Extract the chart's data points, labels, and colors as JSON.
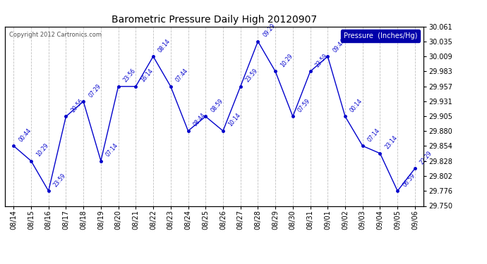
{
  "title": "Barometric Pressure Daily High 20120907",
  "copyright": "Copyright 2012 Cartronics.com",
  "legend_label": "Pressure  (Inches/Hg)",
  "line_color": "#0000CC",
  "background_color": "#ffffff",
  "grid_color": "#c0c0c0",
  "dates": [
    "08/14",
    "08/15",
    "08/16",
    "08/17",
    "08/18",
    "08/19",
    "08/20",
    "08/21",
    "08/22",
    "08/23",
    "08/24",
    "08/25",
    "08/26",
    "08/27",
    "08/28",
    "08/29",
    "08/30",
    "08/31",
    "09/01",
    "09/02",
    "09/03",
    "09/04",
    "09/05",
    "09/06"
  ],
  "values": [
    29.854,
    29.828,
    29.776,
    29.905,
    29.931,
    29.828,
    29.957,
    29.957,
    30.009,
    29.957,
    29.88,
    29.905,
    29.88,
    29.957,
    30.035,
    29.983,
    29.905,
    29.983,
    30.009,
    29.905,
    29.854,
    29.841,
    29.776,
    29.815
  ],
  "time_labels": [
    "00:44",
    "10:29",
    "23:59",
    "20:56",
    "07:29",
    "07:14",
    "23:56",
    "16:14",
    "08:14",
    "07:44",
    "08:44",
    "08:59",
    "10:14",
    "23:59",
    "09:29",
    "10:29",
    "07:59",
    "23:59",
    "09:44",
    "00:14",
    "07:14",
    "23:14",
    "06:59",
    "22:29"
  ],
  "ylim": [
    29.75,
    30.061
  ],
  "yticks": [
    29.75,
    29.776,
    29.802,
    29.828,
    29.854,
    29.88,
    29.905,
    29.931,
    29.957,
    29.983,
    30.009,
    30.035,
    30.061
  ]
}
